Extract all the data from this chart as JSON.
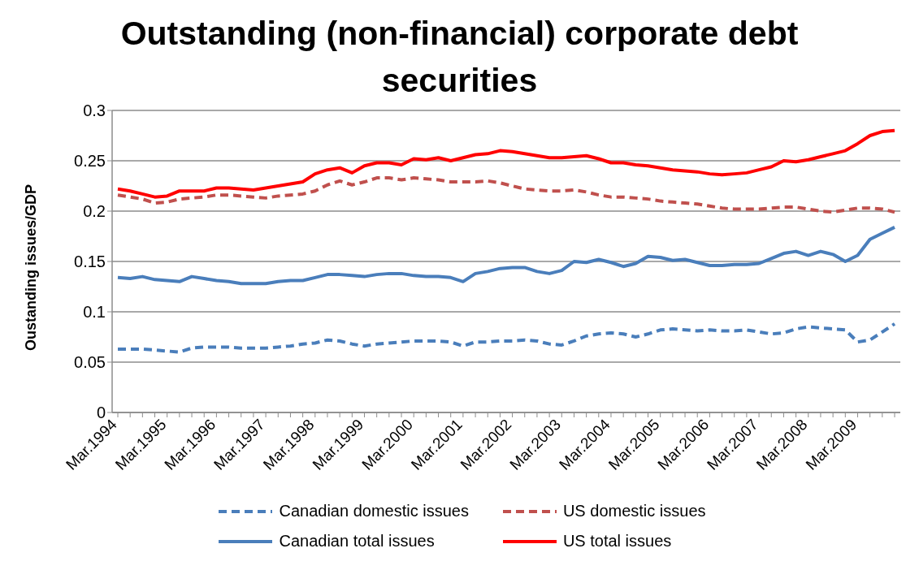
{
  "chart_data": {
    "type": "line",
    "title": "Outstanding (non-financial) corporate debt securities",
    "ylabel": "Oustanding issues/GDP",
    "categories": [
      "Mar.1994",
      null,
      null,
      null,
      "Mar.1995",
      null,
      null,
      null,
      "Mar.1996",
      null,
      null,
      null,
      "Mar.1997",
      null,
      null,
      null,
      "Mar.1998",
      null,
      null,
      null,
      "Mar.1999",
      null,
      null,
      null,
      "Mar.2000",
      null,
      null,
      null,
      "Mar.2001",
      null,
      null,
      null,
      "Mar.2002",
      null,
      null,
      null,
      "Mar.2003",
      null,
      null,
      null,
      "Mar.2004",
      null,
      null,
      null,
      "Mar.2005",
      null,
      null,
      null,
      "Mar.2006",
      null,
      null,
      null,
      "Mar.2007",
      null,
      null,
      null,
      "Mar.2008",
      null,
      null,
      null,
      "Mar.2009",
      null,
      null,
      null
    ],
    "ylim": [
      0,
      0.3
    ],
    "yticks": [
      0,
      0.05,
      0.1,
      0.15,
      0.2,
      0.25,
      0.3
    ],
    "grid": "y",
    "legend": "bottom",
    "marker": "none",
    "series": [
      {
        "name": "Canadian domestic issues",
        "color": "#4a7ebb",
        "line_style": "dashed",
        "values": [
          0.063,
          0.063,
          0.063,
          0.062,
          0.061,
          0.06,
          0.064,
          0.065,
          0.065,
          0.065,
          0.064,
          0.064,
          0.064,
          0.065,
          0.066,
          0.068,
          0.069,
          0.072,
          0.071,
          0.068,
          0.066,
          0.068,
          0.069,
          0.07,
          0.071,
          0.071,
          0.071,
          0.07,
          0.066,
          0.07,
          0.07,
          0.071,
          0.071,
          0.072,
          0.071,
          0.068,
          0.067,
          0.071,
          0.076,
          0.078,
          0.079,
          0.078,
          0.075,
          0.078,
          0.082,
          0.083,
          0.082,
          0.081,
          0.082,
          0.081,
          0.081,
          0.082,
          0.08,
          0.078,
          0.079,
          0.083,
          0.085,
          0.084,
          0.083,
          0.082,
          0.07,
          0.072,
          0.08,
          0.088
        ]
      },
      {
        "name": "US domestic issues",
        "color": "#c0504d",
        "line_style": "dashed",
        "values": [
          0.216,
          0.214,
          0.212,
          0.208,
          0.209,
          0.212,
          0.213,
          0.214,
          0.216,
          0.216,
          0.215,
          0.214,
          0.213,
          0.215,
          0.216,
          0.217,
          0.22,
          0.226,
          0.23,
          0.226,
          0.229,
          0.233,
          0.233,
          0.231,
          0.233,
          0.232,
          0.231,
          0.229,
          0.229,
          0.229,
          0.23,
          0.228,
          0.225,
          0.222,
          0.221,
          0.22,
          0.22,
          0.221,
          0.219,
          0.216,
          0.214,
          0.214,
          0.213,
          0.212,
          0.21,
          0.209,
          0.208,
          0.207,
          0.205,
          0.203,
          0.202,
          0.202,
          0.202,
          0.203,
          0.204,
          0.204,
          0.202,
          0.2,
          0.199,
          0.201,
          0.203,
          0.203,
          0.202,
          0.199
        ]
      },
      {
        "name": "Canadian total issues",
        "color": "#4a7ebb",
        "line_style": "solid",
        "values": [
          0.134,
          0.133,
          0.135,
          0.132,
          0.131,
          0.13,
          0.135,
          0.133,
          0.131,
          0.13,
          0.128,
          0.128,
          0.128,
          0.13,
          0.131,
          0.131,
          0.134,
          0.137,
          0.137,
          0.136,
          0.135,
          0.137,
          0.138,
          0.138,
          0.136,
          0.135,
          0.135,
          0.134,
          0.13,
          0.138,
          0.14,
          0.143,
          0.144,
          0.144,
          0.14,
          0.138,
          0.141,
          0.15,
          0.149,
          0.152,
          0.149,
          0.145,
          0.148,
          0.155,
          0.154,
          0.151,
          0.152,
          0.149,
          0.146,
          0.146,
          0.147,
          0.147,
          0.148,
          0.153,
          0.158,
          0.16,
          0.156,
          0.16,
          0.157,
          0.15,
          0.156,
          0.172,
          0.178,
          0.184
        ]
      },
      {
        "name": "US total issues",
        "color": "#ff0000",
        "line_style": "solid",
        "values": [
          0.222,
          0.22,
          0.217,
          0.214,
          0.215,
          0.22,
          0.22,
          0.22,
          0.223,
          0.223,
          0.222,
          0.221,
          0.223,
          0.225,
          0.227,
          0.229,
          0.237,
          0.241,
          0.243,
          0.238,
          0.245,
          0.248,
          0.248,
          0.246,
          0.252,
          0.251,
          0.253,
          0.25,
          0.253,
          0.256,
          0.257,
          0.26,
          0.259,
          0.257,
          0.255,
          0.253,
          0.253,
          0.254,
          0.255,
          0.252,
          0.248,
          0.248,
          0.246,
          0.245,
          0.243,
          0.241,
          0.24,
          0.239,
          0.237,
          0.236,
          0.237,
          0.238,
          0.241,
          0.244,
          0.25,
          0.249,
          0.251,
          0.254,
          0.257,
          0.26,
          0.267,
          0.275,
          0.279,
          0.28
        ]
      }
    ]
  }
}
